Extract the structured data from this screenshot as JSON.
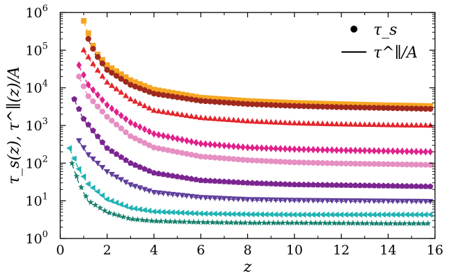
{
  "chart_data": {
    "type": "scatter",
    "xlabel": "z",
    "ylabel": "τ_s(z), τ^∥(z)/A",
    "xlim": [
      0,
      16
    ],
    "ylim": [
      1,
      1000000
    ],
    "yscale": "log",
    "x_ticks": [
      "0",
      "2",
      "4",
      "6",
      "8",
      "10",
      "12",
      "14",
      "16"
    ],
    "y_ticks": [
      "10^0",
      "10^1",
      "10^2",
      "10^3",
      "10^4",
      "10^5",
      "10^6"
    ],
    "legend": {
      "position": "top-right",
      "entries": [
        {
          "marker": "circle",
          "label": "τ_s"
        },
        {
          "marker": "line",
          "label": "τ^∥/A"
        }
      ]
    },
    "series": [
      {
        "color": "#f5a623",
        "marker": "square",
        "x_start": 1.0,
        "points": [
          [
            1.0,
            600000
          ],
          [
            1.5,
            90000
          ],
          [
            2,
            40000
          ],
          [
            3,
            16000
          ],
          [
            4,
            9000
          ],
          [
            6,
            5500
          ],
          [
            8,
            4500
          ],
          [
            10,
            4000
          ],
          [
            12,
            3700
          ],
          [
            14,
            3450
          ],
          [
            15.8,
            3300
          ]
        ]
      },
      {
        "color": "#a0291e",
        "marker": "circle",
        "x_start": 1.2,
        "points": [
          [
            1.2,
            200000
          ],
          [
            1.5,
            80000
          ],
          [
            2,
            30000
          ],
          [
            3,
            12000
          ],
          [
            4,
            7000
          ],
          [
            6,
            4500
          ],
          [
            8,
            3700
          ],
          [
            10,
            3300
          ],
          [
            12,
            3050
          ],
          [
            14,
            2900
          ],
          [
            15.8,
            2750
          ]
        ]
      },
      {
        "color": "#e3262c",
        "marker": "triangle-up",
        "x_start": 1.0,
        "points": [
          [
            1.0,
            100000
          ],
          [
            1.5,
            35000
          ],
          [
            2,
            14000
          ],
          [
            3,
            5000
          ],
          [
            4,
            2500
          ],
          [
            6,
            1600
          ],
          [
            8,
            1300
          ],
          [
            10,
            1150
          ],
          [
            12,
            1080
          ],
          [
            14,
            1030
          ],
          [
            15.8,
            1000
          ]
        ]
      },
      {
        "color": "#e0218a",
        "marker": "diamond",
        "x_start": 0.8,
        "points": [
          [
            0.8,
            40000
          ],
          [
            1.2,
            12000
          ],
          [
            2,
            3500
          ],
          [
            3,
            1200
          ],
          [
            4,
            600
          ],
          [
            6,
            330
          ],
          [
            8,
            260
          ],
          [
            10,
            235
          ],
          [
            12,
            220
          ],
          [
            14,
            210
          ],
          [
            15.8,
            200
          ]
        ]
      },
      {
        "color": "#e68fc2",
        "marker": "circle",
        "x_start": 0.8,
        "points": [
          [
            0.8,
            20000
          ],
          [
            1.2,
            6000
          ],
          [
            2,
            1700
          ],
          [
            3,
            520
          ],
          [
            4,
            260
          ],
          [
            6,
            150
          ],
          [
            8,
            120
          ],
          [
            10,
            105
          ],
          [
            12,
            98
          ],
          [
            14,
            94
          ],
          [
            15.8,
            90
          ]
        ]
      },
      {
        "color": "#7b2591",
        "marker": "pentagon",
        "x_start": 0.6,
        "points": [
          [
            0.6,
            5000
          ],
          [
            1.0,
            1500
          ],
          [
            2,
            250
          ],
          [
            3,
            100
          ],
          [
            4,
            55
          ],
          [
            6,
            35
          ],
          [
            8,
            30
          ],
          [
            10,
            27
          ],
          [
            12,
            26
          ],
          [
            14,
            25
          ],
          [
            15.8,
            24
          ]
        ]
      },
      {
        "color": "#5f3e9b",
        "marker": "triangle-down",
        "x_start": 0.8,
        "points": [
          [
            0.8,
            400
          ],
          [
            1.2,
            170
          ],
          [
            2,
            60
          ],
          [
            3,
            27
          ],
          [
            4,
            17
          ],
          [
            6,
            12.5
          ],
          [
            8,
            11
          ],
          [
            10,
            10.5
          ],
          [
            12,
            10.2
          ],
          [
            14,
            10
          ],
          [
            15.8,
            9.8
          ]
        ]
      },
      {
        "color": "#1fb3b3",
        "marker": "triangle-left",
        "x_start": 0.4,
        "points": [
          [
            0.4,
            250
          ],
          [
            0.8,
            70
          ],
          [
            1.2,
            28
          ],
          [
            2,
            11
          ],
          [
            3,
            6.5
          ],
          [
            4,
            5.2
          ],
          [
            6,
            4.6
          ],
          [
            8,
            4.4
          ],
          [
            10,
            4.3
          ],
          [
            12,
            4.3
          ],
          [
            14,
            4.3
          ],
          [
            15.8,
            4.3
          ]
        ]
      },
      {
        "color": "#15806b",
        "marker": "star",
        "x_start": 0.5,
        "points": [
          [
            0.5,
            100
          ],
          [
            0.8,
            30
          ],
          [
            1.2,
            10
          ],
          [
            2,
            5
          ],
          [
            3,
            3.3
          ],
          [
            4,
            2.9
          ],
          [
            6,
            2.7
          ],
          [
            8,
            2.6
          ],
          [
            10,
            2.6
          ],
          [
            12,
            2.55
          ],
          [
            14,
            2.5
          ],
          [
            15.8,
            2.5
          ]
        ]
      }
    ]
  }
}
